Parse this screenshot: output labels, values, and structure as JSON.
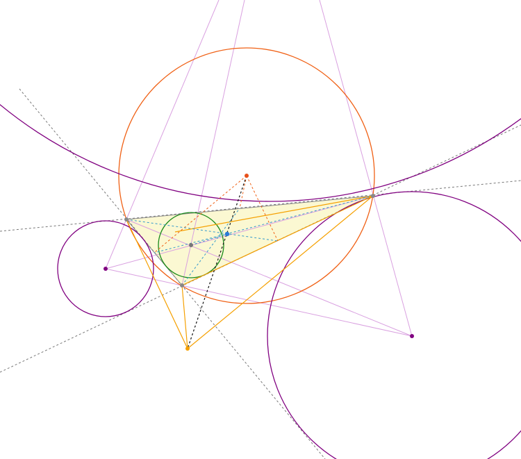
{
  "diagram": {
    "kind": "triangle-center-construction",
    "colors": {
      "triangle_fill": "#fbf8d2",
      "triangle_edge": "#888888",
      "circumcircle": "#f06014",
      "excircle": "#800080",
      "incircle": "#1a8a1a",
      "construction_line": "#d9a0e0",
      "extended_side": "#777777",
      "orange_line": "#f5a000",
      "blue_line": "#3399cc",
      "black_line": "#111111",
      "circumcenter_point": "#e8501a",
      "center_point": "#2a7ad8",
      "incenter_point": "#777777",
      "vertex_point": "#888888",
      "excenter_point": "#800080",
      "orange_point": "#f5a000"
    },
    "points": [
      {
        "id": "A",
        "role": "vertex"
      },
      {
        "id": "B",
        "role": "vertex"
      },
      {
        "id": "C",
        "role": "vertex"
      },
      {
        "id": "O",
        "role": "circumcenter"
      },
      {
        "id": "I",
        "role": "incenter"
      },
      {
        "id": "P",
        "role": "blue-center"
      },
      {
        "id": "J",
        "role": "orange-point"
      },
      {
        "id": "Ea",
        "role": "excenter"
      },
      {
        "id": "Eb",
        "role": "excenter"
      }
    ]
  }
}
